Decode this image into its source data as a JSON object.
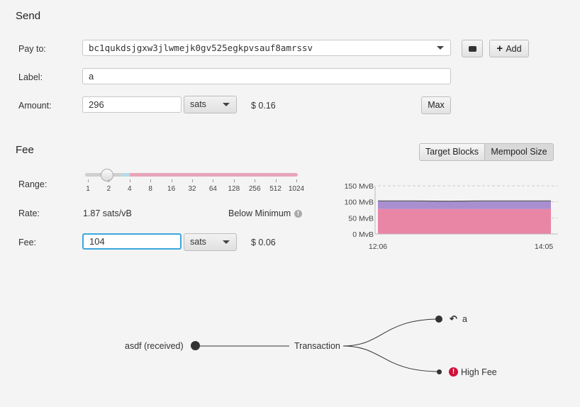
{
  "send": {
    "title": "Send",
    "pay_to_label": "Pay to:",
    "pay_to_value": "bc1qukdsjgxw3jlwmejk0gv525egkpvsauf8amrssv",
    "add_label": "Add",
    "label_label": "Label:",
    "label_value": "a",
    "amount_label": "Amount:",
    "amount_value": "296",
    "amount_unit": "sats",
    "amount_fiat": "$ 0.16",
    "max_label": "Max"
  },
  "fee": {
    "title": "Fee",
    "tabs": [
      {
        "label": "Target Blocks",
        "active": false
      },
      {
        "label": "Mempool Size",
        "active": true
      }
    ],
    "range_label": "Range:",
    "range_ticks": [
      "1",
      "2",
      "4",
      "8",
      "16",
      "32",
      "64",
      "128",
      "256",
      "512",
      "1024"
    ],
    "range_value_rate": 1.87,
    "rate_label": "Rate:",
    "rate_value": "1.87 sats/vB",
    "rate_status": "Below Minimum",
    "fee_label": "Fee:",
    "fee_value": "104",
    "fee_unit": "sats",
    "fee_fiat": "$ 0.06"
  },
  "chart_data": {
    "type": "area",
    "stacked": true,
    "y_ticks": [
      "150 MvB",
      "100 MvB",
      "50 MvB",
      "0 MvB"
    ],
    "ylim": [
      0,
      150
    ],
    "x_ticks": [
      "12:06",
      "14:05"
    ],
    "grid": true,
    "colors": [
      "#e986a6",
      "#a98fd0"
    ],
    "x": [
      "12:06",
      "12:30",
      "12:54",
      "13:18",
      "13:42",
      "14:05"
    ],
    "series": [
      {
        "values": [
          78,
          78,
          78,
          78,
          78,
          78
        ]
      },
      {
        "values": [
          25,
          25,
          24,
          25,
          25,
          25
        ]
      }
    ]
  },
  "tree": {
    "input": "asdf (received)",
    "center": "Transaction",
    "outputs": [
      {
        "label": "a",
        "icon": "reply-all-icon"
      },
      {
        "label": "High Fee",
        "icon": "error-icon",
        "color": "#d0103a"
      }
    ]
  }
}
